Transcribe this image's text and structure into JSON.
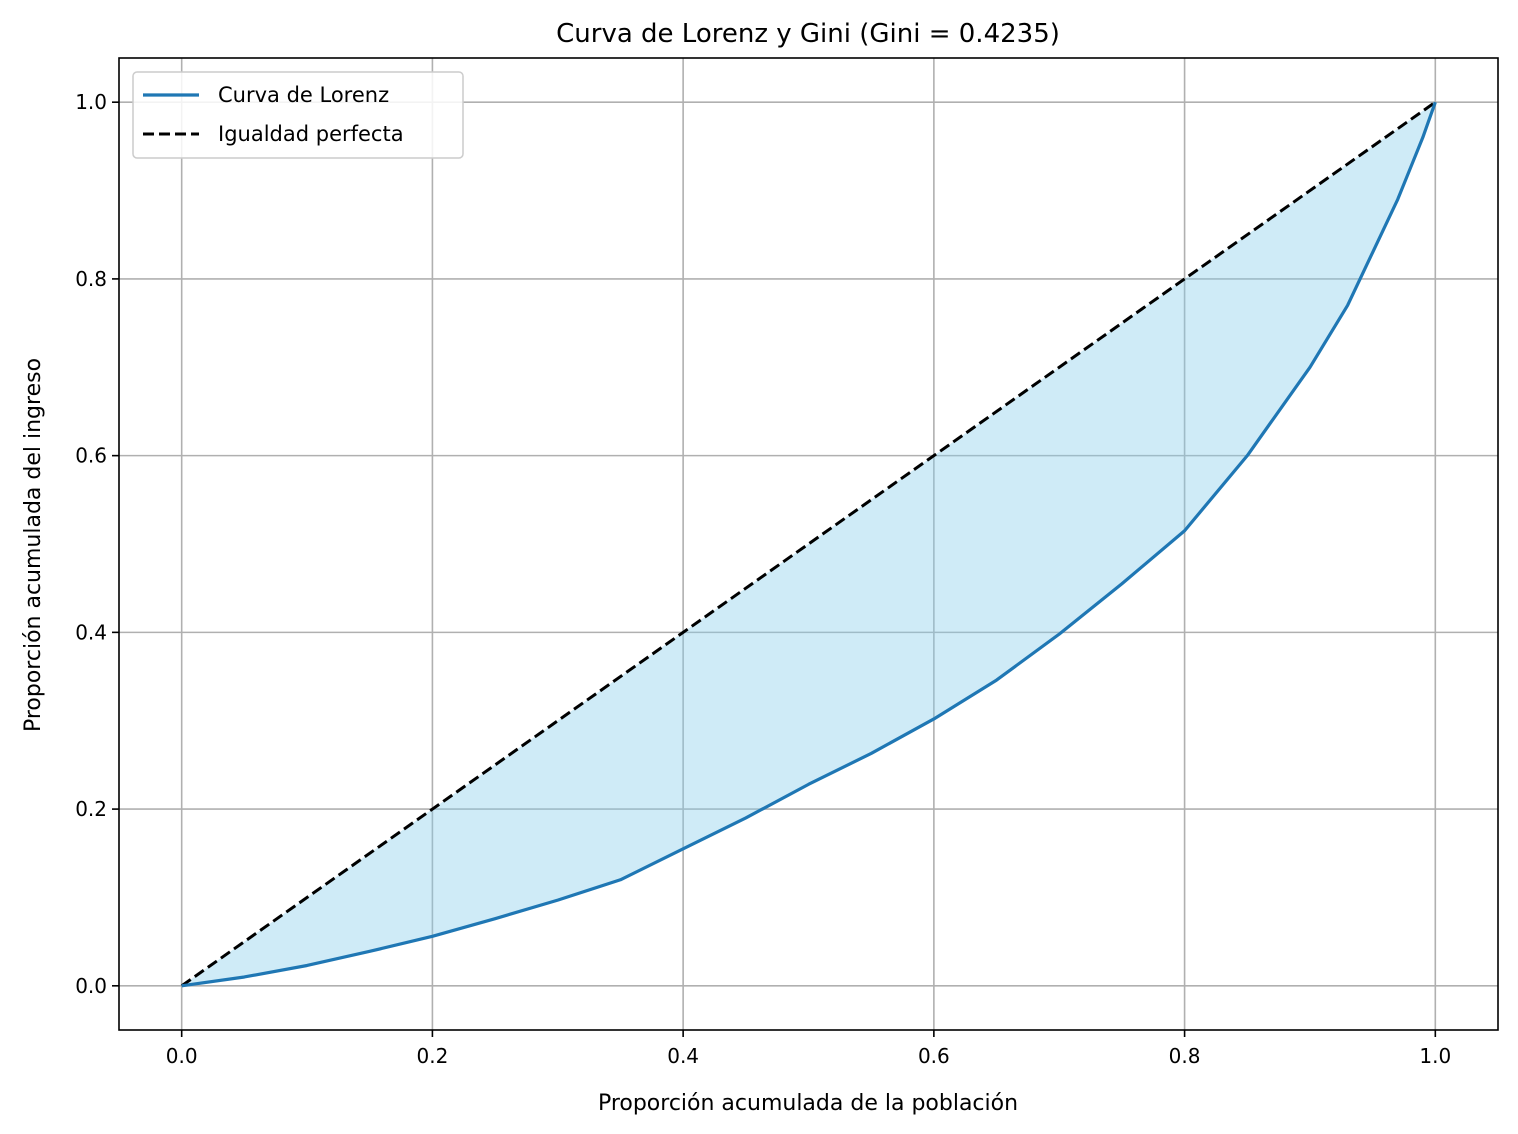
{
  "chart_data": {
    "type": "line",
    "title": "Curva de Lorenz y Gini (Gini = 0.4235)",
    "xlabel": "Proporción acumulada de la población",
    "ylabel": "Proporción acumulada del ingreso",
    "xlim": [
      -0.05,
      1.05
    ],
    "ylim": [
      -0.05,
      1.05
    ],
    "xticks": [
      "0.0",
      "0.2",
      "0.4",
      "0.6",
      "0.8",
      "1.0"
    ],
    "yticks": [
      "0.0",
      "0.2",
      "0.4",
      "0.6",
      "0.8",
      "1.0"
    ],
    "grid": true,
    "legend_position": "top-left",
    "fill_between": true,
    "series": [
      {
        "name": "Curva de Lorenz",
        "color": "#1f77b4",
        "style": "solid",
        "x": [
          0.0,
          0.05,
          0.1,
          0.15,
          0.2,
          0.25,
          0.3,
          0.35,
          0.4,
          0.45,
          0.5,
          0.55,
          0.6,
          0.65,
          0.7,
          0.75,
          0.8,
          0.85,
          0.9,
          0.93,
          0.95,
          0.97,
          0.98,
          0.99,
          1.0
        ],
        "y": [
          0.0,
          0.01,
          0.023,
          0.039,
          0.056,
          0.076,
          0.097,
          0.12,
          0.155,
          0.19,
          0.228,
          0.263,
          0.302,
          0.346,
          0.398,
          0.455,
          0.515,
          0.6,
          0.7,
          0.77,
          0.83,
          0.89,
          0.925,
          0.96,
          1.0
        ]
      },
      {
        "name": "Igualdad perfecta",
        "color": "#000000",
        "style": "dashed",
        "x": [
          0.0,
          1.0
        ],
        "y": [
          0.0,
          1.0
        ]
      }
    ],
    "fill_color": "#87ceeb"
  }
}
